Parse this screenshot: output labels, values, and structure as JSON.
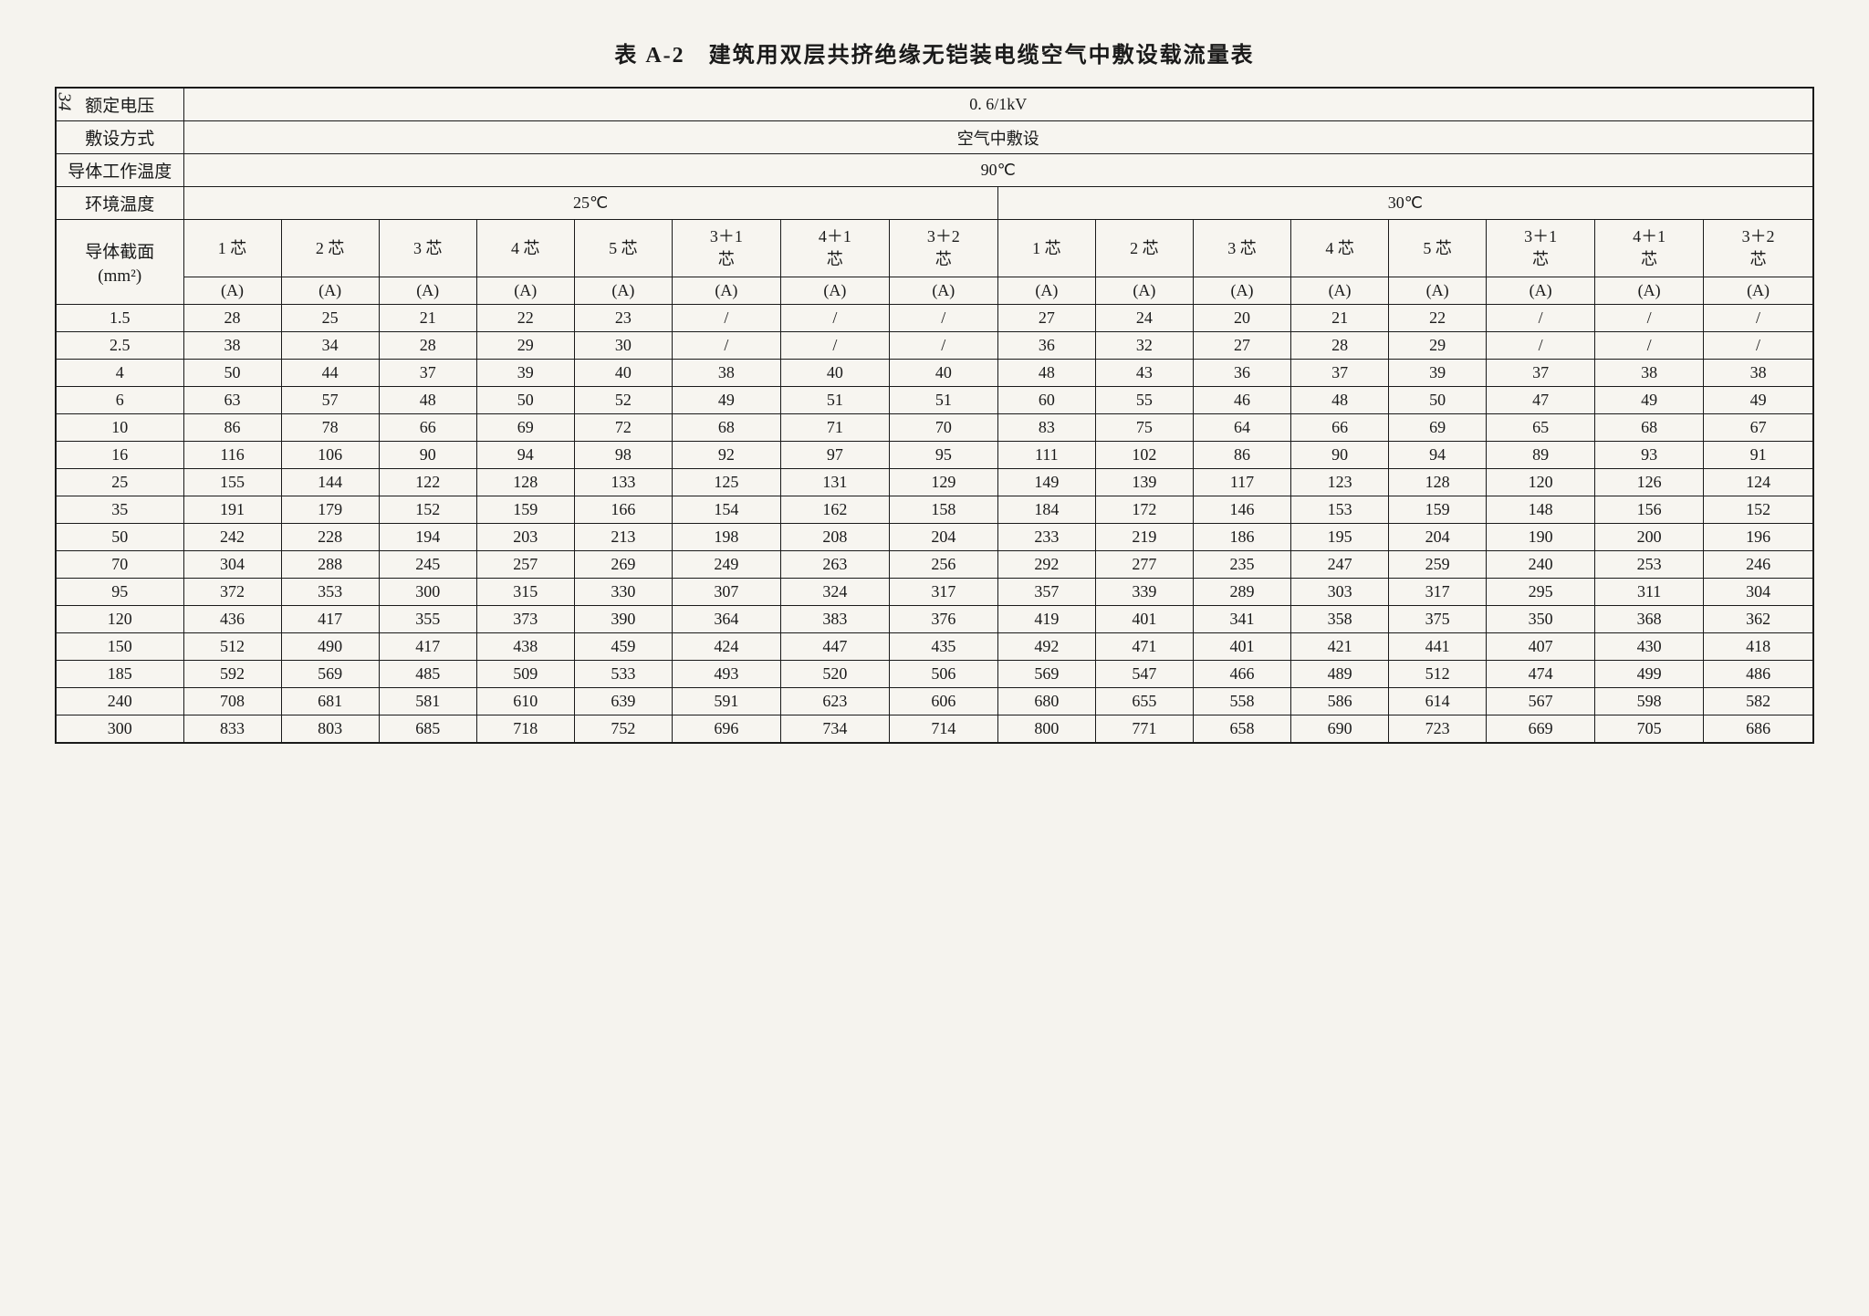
{
  "pageNumber": "34",
  "title": "表 A-2　建筑用双层共挤绝缘无铠装电缆空气中敷设载流量表",
  "headers": {
    "ratedVoltage": "额定电压",
    "ratedVoltageValue": "0. 6/1kV",
    "layingMethod": "敷设方式",
    "layingMethodValue": "空气中敷设",
    "conductorTemp": "导体工作温度",
    "conductorTempValue": "90℃",
    "ambientTemp": "环境温度",
    "ambientTemp25": "25℃",
    "ambientTemp30": "30℃",
    "crossSection": "导体截面",
    "crossSectionUnit": "(mm²)",
    "unitA": "(A)"
  },
  "coreLabels": [
    "1 芯",
    "2 芯",
    "3 芯",
    "4 芯",
    "5 芯",
    "3＋1 芯",
    "4＋1 芯",
    "3＋2 芯",
    "1 芯",
    "2 芯",
    "3 芯",
    "4 芯",
    "5 芯",
    "3＋1 芯",
    "4＋1 芯",
    "3＋2 芯"
  ],
  "rows": [
    {
      "size": "1.5",
      "vals": [
        "28",
        "25",
        "21",
        "22",
        "23",
        "/",
        "/",
        "/",
        "27",
        "24",
        "20",
        "21",
        "22",
        "/",
        "/",
        "/"
      ]
    },
    {
      "size": "2.5",
      "vals": [
        "38",
        "34",
        "28",
        "29",
        "30",
        "/",
        "/",
        "/",
        "36",
        "32",
        "27",
        "28",
        "29",
        "/",
        "/",
        "/"
      ]
    },
    {
      "size": "4",
      "vals": [
        "50",
        "44",
        "37",
        "39",
        "40",
        "38",
        "40",
        "40",
        "48",
        "43",
        "36",
        "37",
        "39",
        "37",
        "38",
        "38"
      ]
    },
    {
      "size": "6",
      "vals": [
        "63",
        "57",
        "48",
        "50",
        "52",
        "49",
        "51",
        "51",
        "60",
        "55",
        "46",
        "48",
        "50",
        "47",
        "49",
        "49"
      ]
    },
    {
      "size": "10",
      "vals": [
        "86",
        "78",
        "66",
        "69",
        "72",
        "68",
        "71",
        "70",
        "83",
        "75",
        "64",
        "66",
        "69",
        "65",
        "68",
        "67"
      ]
    },
    {
      "size": "16",
      "vals": [
        "116",
        "106",
        "90",
        "94",
        "98",
        "92",
        "97",
        "95",
        "111",
        "102",
        "86",
        "90",
        "94",
        "89",
        "93",
        "91"
      ]
    },
    {
      "size": "25",
      "vals": [
        "155",
        "144",
        "122",
        "128",
        "133",
        "125",
        "131",
        "129",
        "149",
        "139",
        "117",
        "123",
        "128",
        "120",
        "126",
        "124"
      ]
    },
    {
      "size": "35",
      "vals": [
        "191",
        "179",
        "152",
        "159",
        "166",
        "154",
        "162",
        "158",
        "184",
        "172",
        "146",
        "153",
        "159",
        "148",
        "156",
        "152"
      ]
    },
    {
      "size": "50",
      "vals": [
        "242",
        "228",
        "194",
        "203",
        "213",
        "198",
        "208",
        "204",
        "233",
        "219",
        "186",
        "195",
        "204",
        "190",
        "200",
        "196"
      ]
    },
    {
      "size": "70",
      "vals": [
        "304",
        "288",
        "245",
        "257",
        "269",
        "249",
        "263",
        "256",
        "292",
        "277",
        "235",
        "247",
        "259",
        "240",
        "253",
        "246"
      ]
    },
    {
      "size": "95",
      "vals": [
        "372",
        "353",
        "300",
        "315",
        "330",
        "307",
        "324",
        "317",
        "357",
        "339",
        "289",
        "303",
        "317",
        "295",
        "311",
        "304"
      ]
    },
    {
      "size": "120",
      "vals": [
        "436",
        "417",
        "355",
        "373",
        "390",
        "364",
        "383",
        "376",
        "419",
        "401",
        "341",
        "358",
        "375",
        "350",
        "368",
        "362"
      ]
    },
    {
      "size": "150",
      "vals": [
        "512",
        "490",
        "417",
        "438",
        "459",
        "424",
        "447",
        "435",
        "492",
        "471",
        "401",
        "421",
        "441",
        "407",
        "430",
        "418"
      ]
    },
    {
      "size": "185",
      "vals": [
        "592",
        "569",
        "485",
        "509",
        "533",
        "493",
        "520",
        "506",
        "569",
        "547",
        "466",
        "489",
        "512",
        "474",
        "499",
        "486"
      ]
    },
    {
      "size": "240",
      "vals": [
        "708",
        "681",
        "581",
        "610",
        "639",
        "591",
        "623",
        "606",
        "680",
        "655",
        "558",
        "586",
        "614",
        "567",
        "598",
        "582"
      ]
    },
    {
      "size": "300",
      "vals": [
        "833",
        "803",
        "685",
        "718",
        "752",
        "696",
        "734",
        "714",
        "800",
        "771",
        "658",
        "690",
        "723",
        "669",
        "705",
        "686"
      ]
    }
  ]
}
